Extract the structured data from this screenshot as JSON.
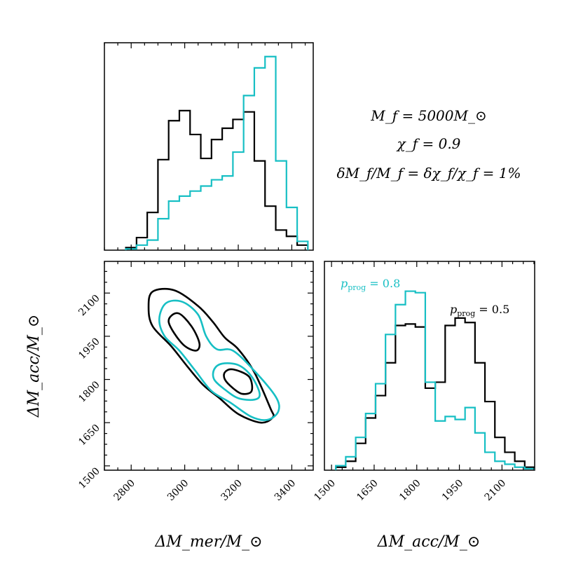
{
  "colors": {
    "black": "#000000",
    "cyan": "#17bfc4"
  },
  "annotation": {
    "line1": "M_f = 5000M_⊙",
    "line2": "χ_f = 0.9",
    "line3": "δM_f/M_f = δχ_f/χ_f = 1%"
  },
  "chart_data": [
    {
      "type": "histogram",
      "panel": "top-left",
      "xlim": [
        2700,
        3480
      ],
      "bin_edges": [
        2780,
        2820,
        2860,
        2900,
        2940,
        2980,
        3020,
        3060,
        3100,
        3140,
        3180,
        3220,
        3260,
        3300,
        3340,
        3380,
        3420,
        3460
      ],
      "series": [
        {
          "name": "",
          "color": "black",
          "counts": [
            2,
            10,
            30,
            72,
            103,
            111,
            92,
            73,
            88,
            97,
            104,
            110,
            71,
            35,
            16,
            11,
            4
          ]
        },
        {
          "name": "",
          "color": "cyan",
          "counts": [
            1,
            4,
            8,
            25,
            39,
            43,
            47,
            51,
            56,
            59,
            78,
            123,
            145,
            154,
            71,
            34,
            7
          ]
        }
      ],
      "ylim": [
        0,
        165
      ],
      "xlabel": "",
      "ylabel": ""
    },
    {
      "type": "contour",
      "panel": "bottom-left",
      "xlim": [
        2700,
        3480
      ],
      "ylim": [
        1485,
        2210
      ],
      "xticks": [
        2800,
        3000,
        3200,
        3400
      ],
      "yticks": [
        1500,
        1650,
        1800,
        1950,
        2100
      ],
      "xlabel": "ΔM_mer/M_⊙",
      "ylabel": "ΔM_acc/M_⊙",
      "series": [
        {
          "color": "black",
          "level": "outer",
          "points": [
            [
              2880,
              2105
            ],
            [
              2960,
              2110
            ],
            [
              3050,
              2055
            ],
            [
              3105,
              2000
            ],
            [
              3150,
              1945
            ],
            [
              3200,
              1905
            ],
            [
              3260,
              1825
            ],
            [
              3320,
              1700
            ],
            [
              3330,
              1670
            ],
            [
              3285,
              1650
            ],
            [
              3200,
              1680
            ],
            [
              3130,
              1735
            ],
            [
              3070,
              1780
            ],
            [
              3010,
              1845
            ],
            [
              2950,
              1915
            ],
            [
              2880,
              1985
            ],
            [
              2865,
              2050
            ]
          ]
        },
        {
          "color": "cyan",
          "level": "outer",
          "points": [
            [
              2930,
              2065
            ],
            [
              2990,
              2070
            ],
            [
              3050,
              2025
            ],
            [
              3080,
              1950
            ],
            [
              3120,
              1905
            ],
            [
              3180,
              1900
            ],
            [
              3260,
              1830
            ],
            [
              3340,
              1740
            ],
            [
              3350,
              1690
            ],
            [
              3310,
              1660
            ],
            [
              3250,
              1670
            ],
            [
              3170,
              1720
            ],
            [
              3100,
              1760
            ],
            [
              3040,
              1830
            ],
            [
              2980,
              1900
            ],
            [
              2925,
              1950
            ],
            [
              2905,
              2010
            ]
          ]
        },
        {
          "color": "black",
          "level": "inner",
          "points": [
            [
              2940,
              2000
            ],
            [
              2975,
              2030
            ],
            [
              3025,
              1985
            ],
            [
              3055,
              1925
            ],
            [
              3040,
              1900
            ],
            [
              2990,
              1925
            ]
          ]
        },
        {
          "color": "cyan",
          "level": "inner",
          "points": [
            [
              3110,
              1835
            ],
            [
              3140,
              1855
            ],
            [
              3200,
              1850
            ],
            [
              3250,
              1810
            ],
            [
              3280,
              1750
            ],
            [
              3260,
              1730
            ],
            [
              3200,
              1735
            ],
            [
              3150,
              1765
            ],
            [
              3110,
              1800
            ]
          ]
        },
        {
          "color": "black",
          "level": "inner",
          "points": [
            [
              3150,
              1825
            ],
            [
              3180,
              1835
            ],
            [
              3240,
              1810
            ],
            [
              3250,
              1760
            ],
            [
              3215,
              1750
            ],
            [
              3180,
              1770
            ],
            [
              3150,
              1800
            ]
          ]
        }
      ]
    },
    {
      "type": "histogram",
      "panel": "bottom-right",
      "xlim": [
        1475,
        2215
      ],
      "xticks": [
        1500,
        1650,
        1800,
        1950,
        2100
      ],
      "xlabel": "ΔM_acc/M_⊙",
      "ylim": [
        0,
        140
      ],
      "bin_edges": [
        1515,
        1550,
        1585,
        1620,
        1655,
        1690,
        1725,
        1760,
        1795,
        1830,
        1865,
        1900,
        1935,
        1970,
        2005,
        2040,
        2075,
        2110,
        2145,
        2180,
        2215
      ],
      "series": [
        {
          "name": "p_prog = 0.5",
          "color": "black",
          "counts": [
            2,
            6,
            18,
            35,
            50,
            72,
            97,
            98,
            96,
            55,
            59,
            97,
            102,
            99,
            72,
            46,
            22,
            12,
            6,
            2
          ]
        },
        {
          "name": "p_prog = 0.8",
          "color": "cyan",
          "counts": [
            3,
            9,
            22,
            38,
            58,
            91,
            111,
            120,
            119,
            59,
            33,
            36,
            34,
            42,
            25,
            12,
            6,
            4,
            2,
            1
          ]
        }
      ]
    }
  ],
  "legend": {
    "cyan_base": "p",
    "cyan_sub": "prog",
    "cyan_eq": " = 0.8",
    "black_base": "p",
    "black_sub": "prog",
    "black_eq": " = 0.5"
  }
}
